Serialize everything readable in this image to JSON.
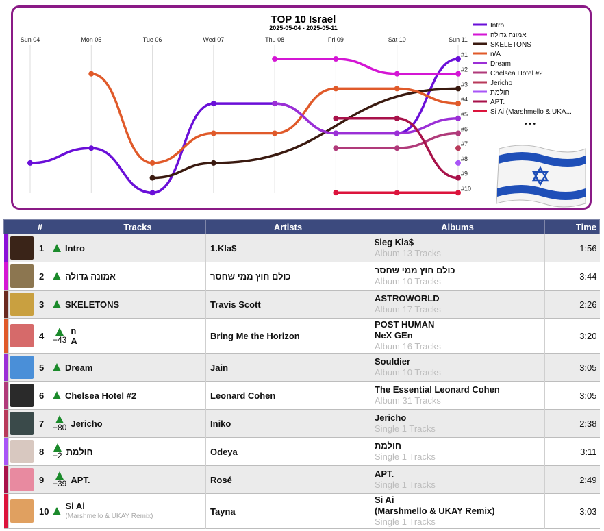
{
  "chart": {
    "title": "TOP 10 Israel",
    "subtitle": "2025-05-04 - 2025-05-11",
    "days": [
      "Sun 04",
      "Mon 05",
      "Tue 06",
      "Wed 07",
      "Thu 08",
      "Fri 09",
      "Sat 10",
      "Sun 11"
    ],
    "rank_labels": [
      "#1",
      "#2",
      "#3",
      "#4",
      "#5",
      "#6",
      "#7",
      "#8",
      "#9",
      "#10"
    ],
    "legend_more": "• • •",
    "flag_name": "israel-flag"
  },
  "colors": {
    "frame": "#8a1a86",
    "header_bg": "#3c4a7e",
    "up_arrow": "#1b8a2b"
  },
  "chart_data": {
    "type": "line",
    "x": [
      "Sun 04",
      "Mon 05",
      "Tue 06",
      "Wed 07",
      "Thu 08",
      "Fri 09",
      "Sat 10",
      "Sun 11"
    ],
    "ylabel": "",
    "y_inverted": true,
    "ylim": [
      1,
      10
    ],
    "series": [
      {
        "name": "Intro",
        "color": "#6a0fd8",
        "values": [
          8,
          7,
          10,
          4,
          4,
          6,
          6,
          1
        ]
      },
      {
        "name": "אמונה גדולה",
        "color": "#d416d4",
        "values": [
          null,
          null,
          null,
          null,
          1,
          1,
          2,
          2
        ]
      },
      {
        "name": "SKELETONS",
        "color": "#3a1a10",
        "values": [
          null,
          null,
          9,
          8,
          null,
          null,
          null,
          3
        ]
      },
      {
        "name": "n/A",
        "color": "#e05a2a",
        "values": [
          null,
          2,
          8,
          6,
          6,
          3,
          3,
          4
        ]
      },
      {
        "name": "Dream",
        "color": "#9b2fd6",
        "values": [
          null,
          null,
          null,
          null,
          4,
          6,
          6,
          5
        ]
      },
      {
        "name": "Chelsea Hotel #2",
        "color": "#b03a7a",
        "values": [
          null,
          null,
          null,
          null,
          null,
          7,
          7,
          6
        ]
      },
      {
        "name": "Jericho",
        "color": "#b83a5a",
        "values": [
          null,
          null,
          null,
          null,
          null,
          null,
          null,
          7
        ]
      },
      {
        "name": "חולמת",
        "color": "#a855f7",
        "values": [
          null,
          null,
          null,
          null,
          null,
          null,
          null,
          8
        ]
      },
      {
        "name": "APT.",
        "color": "#a8124a",
        "values": [
          null,
          null,
          null,
          null,
          null,
          5,
          5,
          9
        ]
      },
      {
        "name": "Si Ai (Marshmello & UKA...",
        "color": "#dc143c",
        "values": [
          null,
          null,
          null,
          null,
          null,
          10,
          10,
          10
        ]
      }
    ]
  },
  "table": {
    "headers": {
      "rank": "#",
      "tracks": "Tracks",
      "artists": "Artists",
      "albums": "Albums",
      "time": "Time"
    },
    "rows": [
      {
        "rank": "1",
        "delta": "",
        "track": "Intro",
        "track_sub": "",
        "artist": "1.Kla$",
        "album": "$ieg Kla$",
        "album_line2": "",
        "album_meta": "Album 13 Tracks",
        "time": "1:56",
        "color": "#8b10d8",
        "cover_bg": "#3a2418"
      },
      {
        "rank": "2",
        "delta": "",
        "track": "אמונה גדולה",
        "track_sub": "",
        "artist": "כולם חוץ ממי שחסר",
        "album": "כולם חוץ ממי שחסר",
        "album_line2": "",
        "album_meta": "Album 10 Tracks",
        "time": "3:44",
        "color": "#d416d4",
        "cover_bg": "#8c7650"
      },
      {
        "rank": "3",
        "delta": "",
        "track": "SKELETONS",
        "track_sub": "",
        "artist": "Travis Scott",
        "album": "ASTROWORLD",
        "album_line2": "",
        "album_meta": "Album 17 Tracks",
        "time": "2:26",
        "color": "#6a2a20",
        "cover_bg": "#c9a040"
      },
      {
        "rank": "4",
        "delta": "+43",
        "track": "n",
        "track2": "A",
        "track_sub": "",
        "artist": "Bring Me the Horizon",
        "album": "POST HUMAN",
        "album_line2": "NeX GEn",
        "album_meta": "Album 16 Tracks",
        "time": "3:20",
        "color": "#e05a2a",
        "cover_bg": "#d66a6a"
      },
      {
        "rank": "5",
        "delta": "",
        "track": "Dream",
        "track_sub": "",
        "artist": "Jain",
        "album": "Souldier",
        "album_line2": "",
        "album_meta": "Album 10 Tracks",
        "time": "3:05",
        "color": "#9b2fd6",
        "cover_bg": "#4a8fd8"
      },
      {
        "rank": "6",
        "delta": "",
        "track": "Chelsea Hotel #2",
        "track_sub": "",
        "artist": "Leonard Cohen",
        "album": "The Essential Leonard Cohen",
        "album_line2": "",
        "album_meta": "Album 31 Tracks",
        "time": "3:05",
        "color": "#b03a7a",
        "cover_bg": "#2a2a2a"
      },
      {
        "rank": "7",
        "delta": "+80",
        "track": "Jericho",
        "track_sub": "",
        "artist": "Iniko",
        "album": "Jericho",
        "album_line2": "",
        "album_meta": "Single 1 Tracks",
        "time": "2:38",
        "color": "#b83a5a",
        "cover_bg": "#3a4a4a"
      },
      {
        "rank": "8",
        "delta": "+2",
        "track": "חולמת",
        "track_sub": "",
        "artist": "Odeya",
        "album": "חולמת",
        "album_line2": "",
        "album_meta": "Single 1 Tracks",
        "time": "3:11",
        "color": "#a855f7",
        "cover_bg": "#d8c8c0"
      },
      {
        "rank": "9",
        "delta": "+39",
        "track": "APT.",
        "track_sub": "",
        "artist": "Rosé",
        "album": "APT.",
        "album_line2": "",
        "album_meta": "Single 1 Tracks",
        "time": "2:49",
        "color": "#a8124a",
        "cover_bg": "#e88aa0"
      },
      {
        "rank": "10",
        "delta": "",
        "track": "Si Ai",
        "track_sub": "(Marshmello & UKAY Remix)",
        "artist": "Tayna",
        "album": "Si Ai",
        "album_line2": "(Marshmello & UKAY Remix)",
        "album_meta": "Single 1 Tracks",
        "time": "3:03",
        "color": "#dc143c",
        "cover_bg": "#e0a060"
      }
    ]
  }
}
